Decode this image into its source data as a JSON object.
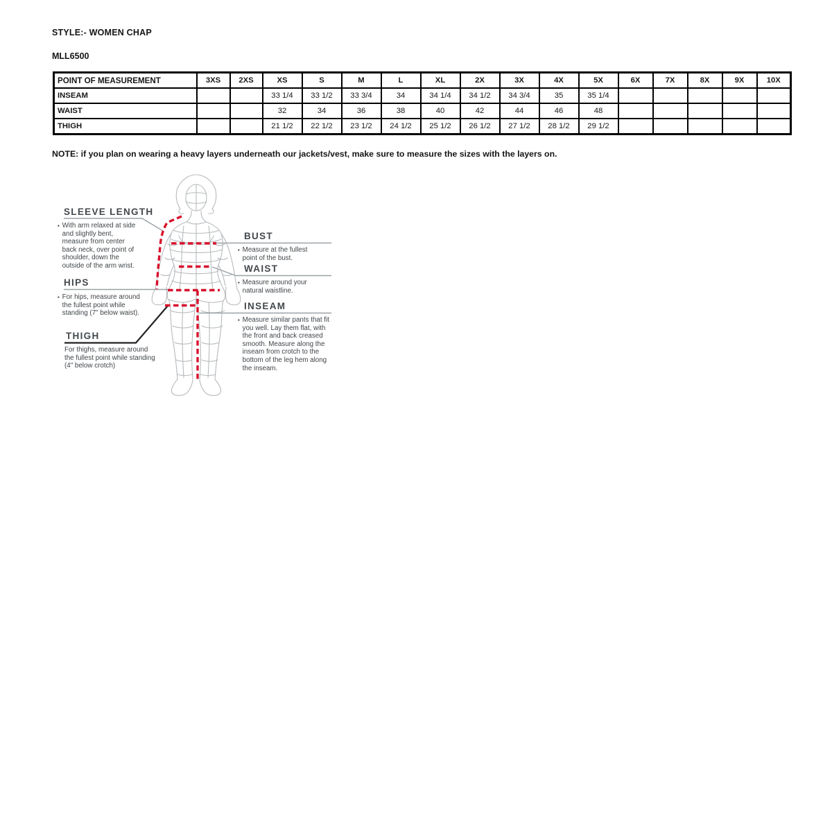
{
  "header": {
    "style_label": "STYLE:- WOMEN CHAP",
    "model": "MLL6500"
  },
  "size_table": {
    "columns": [
      "POINT OF MEASUREMENT",
      "3XS",
      "2XS",
      "XS",
      "S",
      "M",
      "L",
      "XL",
      "2X",
      "3X",
      "4X",
      "5X",
      "6X",
      "7X",
      "8X",
      "9X",
      "10X"
    ],
    "rows": [
      {
        "label": "INSEAM",
        "values": [
          "",
          "",
          "33 1/4",
          "33 1/2",
          "33 3/4",
          "34",
          "34 1/4",
          "34 1/2",
          "34 3/4",
          "35",
          "35 1/4",
          "",
          "",
          "",
          "",
          ""
        ]
      },
      {
        "label": "WAIST",
        "values": [
          "",
          "",
          "32",
          "34",
          "36",
          "38",
          "40",
          "42",
          "44",
          "46",
          "48",
          "",
          "",
          "",
          "",
          ""
        ]
      },
      {
        "label": "THIGH",
        "values": [
          "",
          "",
          "21 1/2",
          "22 1/2",
          "23 1/2",
          "24 1/2",
          "25 1/2",
          "26 1/2",
          "27 1/2",
          "28 1/2",
          "29 1/2",
          "",
          "",
          "",
          "",
          ""
        ]
      }
    ]
  },
  "note": "NOTE: if you plan on wearing a heavy layers underneath our jackets/vest, make sure to measure the sizes with the layers on.",
  "guide": {
    "sleeve": {
      "title": "SLEEVE LENGTH",
      "desc": "With arm relaxed at side and slightly bent, measure from center back neck, over point of shoulder, down the outside of the arm wrist."
    },
    "hips": {
      "title": "HIPS",
      "desc": "For hips, measure around the fullest point while standing (7\" below waist)."
    },
    "thigh": {
      "title": "THIGH",
      "desc": "For thighs, measure around the fullest point while standing (4\" below crotch)"
    },
    "bust": {
      "title": "BUST",
      "desc": "Measure at the fullest point of the bust."
    },
    "waist": {
      "title": "WAIST",
      "desc": "Measure around your natural waistline."
    },
    "inseam": {
      "title": "INSEAM",
      "desc": "Measure similar pants that fit you well. Lay them flat, with the front and back creased smooth. Measure along the inseam from crotch to the bottom of the leg hem along the inseam."
    }
  },
  "colors": {
    "measure_line_red": "#d8122c",
    "leader_gray": "#9aa2a6",
    "wireframe_gray": "#b6babd",
    "text_dark": "#3f4448"
  }
}
